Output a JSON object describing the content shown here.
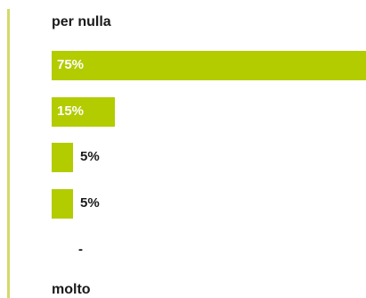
{
  "chart_data": {
    "type": "bar",
    "orientation": "horizontal",
    "scale_top_label": "per nulla",
    "scale_bottom_label": "molto",
    "categories": [
      "",
      "",
      "",
      "",
      ""
    ],
    "values": [
      75,
      15,
      5,
      5,
      null
    ],
    "value_labels": [
      "75%",
      "15%",
      "5%",
      "5%",
      "-"
    ],
    "xlim": [
      0,
      75
    ],
    "bar_color": "#b3cc00",
    "axis_line_color": "#d4d86a"
  }
}
